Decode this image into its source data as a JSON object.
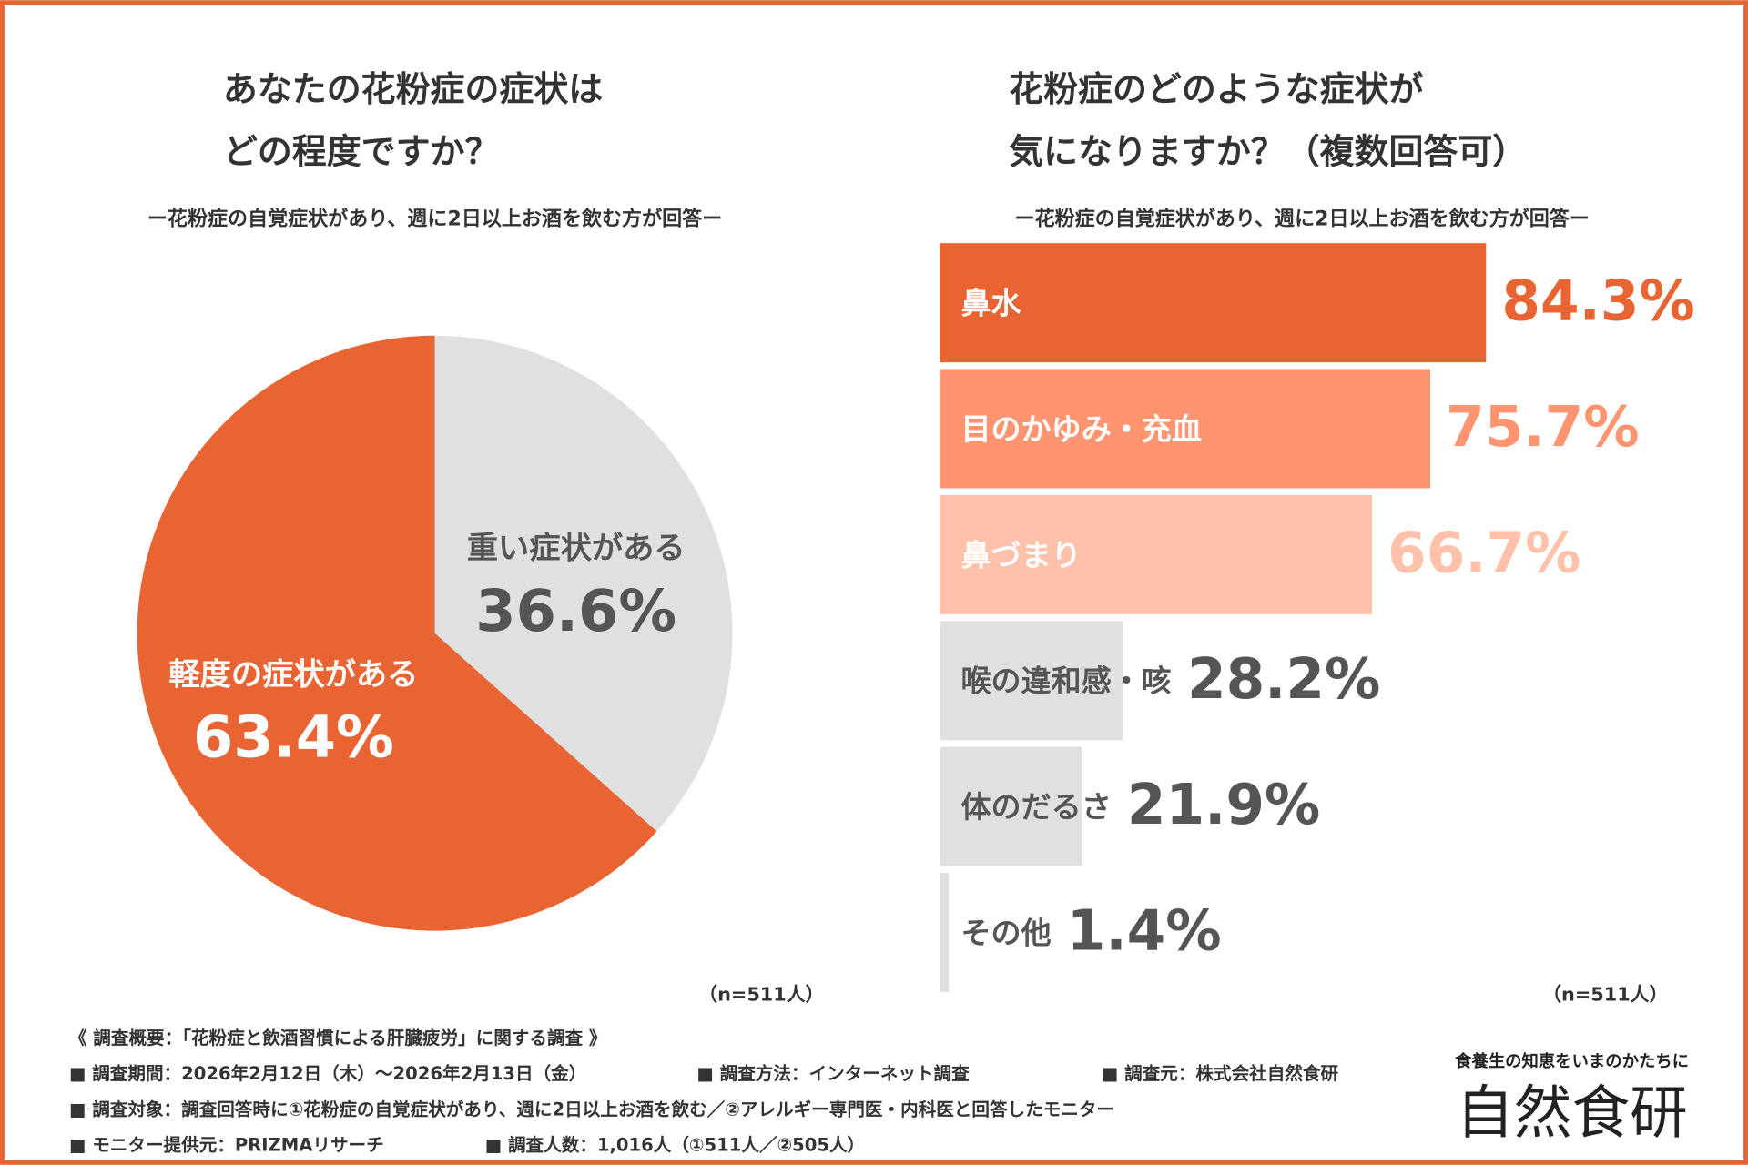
{
  "chart_data": [
    {
      "type": "pie",
      "title": [
        "あなたの花粉症の症状は",
        "どの程度ですか？"
      ],
      "subtitle": "ー花粉症の自覚症状があり、週に2日以上お酒を飲む方が回答ー",
      "categories": [
        "重い症状がある",
        "軽度の症状がある"
      ],
      "values": [
        36.6,
        63.4
      ],
      "value_labels": [
        "36.6%",
        "63.4%"
      ],
      "colors": [
        "#e0e0e0",
        "#e86433"
      ],
      "note": "（n=511人）"
    },
    {
      "type": "bar",
      "orientation": "horizontal",
      "title": [
        "花粉症のどのような症状が",
        "気になりますか？（複数回答可）"
      ],
      "subtitle": "ー花粉症の自覚症状があり、週に2日以上お酒を飲む方が回答ー",
      "categories": [
        "鼻水",
        "目のかゆみ・充血",
        "鼻づまり",
        "喉の違和感・咳",
        "体のだるさ",
        "その他"
      ],
      "values": [
        84.3,
        75.7,
        66.7,
        28.2,
        21.9,
        1.4
      ],
      "value_labels": [
        "84.3%",
        "75.7%",
        "66.7%",
        "28.2%",
        "21.9%",
        "1.4%"
      ],
      "colors": [
        "#e86433",
        "#ff9470",
        "#ffc1aa",
        "#e0e0e0",
        "#e0e0e0",
        "#e0e0e0"
      ],
      "note": "（n=511人）"
    }
  ],
  "footer": {
    "heading": "《 調査概要：「花粉症と飲酒習慣による肝臓疲労」に関する調査 》",
    "lines": [
      [
        "■ 調査期間：2026年2月12日（木）〜2026年2月13日（金）",
        "■ 調査方法：インターネット調査",
        "■ 調査元：株式会社自然食研"
      ],
      [
        "■ 調査対象：調査回答時に①花粉症の自覚症状があり、週に2日以上お酒を飲む／②アレルギー専門医・内科医と回答したモニター"
      ],
      [
        "■ モニター提供元：PRIZMAリサーチ",
        "■ 調査人数：1,016人（①511人／②505人）"
      ]
    ]
  },
  "logo": {
    "tagline": "食養生の知恵をいまのかたちに",
    "name": "自然食研"
  }
}
